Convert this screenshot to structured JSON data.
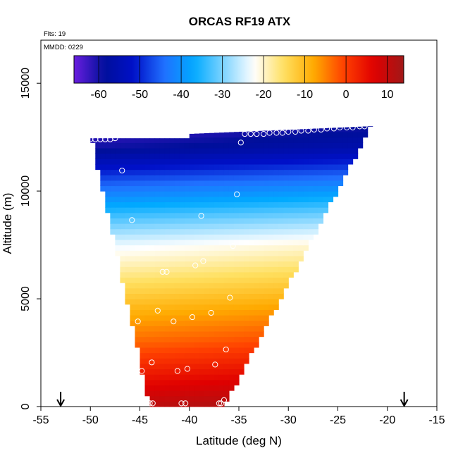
{
  "chart_data": {
    "type": "heatmap",
    "title": "ORCAS RF19 ATX",
    "annotations": {
      "flights": "Flts: 19",
      "date": "MMDD: 0229"
    },
    "xlabel": "Latitude (deg N)",
    "ylabel": "Altitude (m)",
    "xlim": [
      -55,
      -15
    ],
    "ylim": [
      0,
      17000
    ],
    "x_ticks": [
      -55,
      -50,
      -45,
      -40,
      -35,
      -30,
      -25,
      -20,
      -15
    ],
    "x_tick_labels": [
      "-55",
      "-50",
      "-45",
      "-40",
      "-35",
      "-30",
      "-25",
      "-20",
      "-15"
    ],
    "y_ticks": [
      0,
      5000,
      10000,
      15000
    ],
    "y_tick_labels": [
      "0",
      "5000",
      "10000",
      "15000"
    ],
    "colorbar": {
      "range": [
        -66,
        14
      ],
      "ticks": [
        -60,
        -50,
        -40,
        -30,
        -20,
        -10,
        0,
        10
      ],
      "tick_labels": [
        "-60",
        "-50",
        "-40",
        "-30",
        "-20",
        "-10",
        "0",
        "10"
      ],
      "colors": [
        "#6a1ee0",
        "#000f9a",
        "#0010c8",
        "#2070ff",
        "#00aaff",
        "#7fd4ff",
        "#ffffff",
        "#ffe060",
        "#ffaa00",
        "#ff4000",
        "#e00000",
        "#a01818"
      ]
    },
    "field": {
      "description_bounds": {
        "bottom_lat_range": [
          -44,
          -36.5
        ],
        "top_lat_range": [
          -50,
          -22
        ]
      },
      "top_altitude_profile": [
        {
          "lat": -50,
          "alt": 12400
        },
        {
          "lat": -40,
          "alt": 12600
        },
        {
          "lat": -40,
          "alt": 12900
        },
        {
          "lat": -22,
          "alt": 13000
        }
      ],
      "temperature_by_altitude": [
        {
          "alt": 0,
          "temp": 12
        },
        {
          "alt": 1500,
          "temp": 5
        },
        {
          "alt": 3000,
          "temp": -2
        },
        {
          "alt": 4500,
          "temp": -8
        },
        {
          "alt": 6000,
          "temp": -15
        },
        {
          "alt": 7500,
          "temp": -22
        },
        {
          "alt": 9000,
          "temp": -33
        },
        {
          "alt": 10500,
          "temp": -45
        },
        {
          "alt": 12000,
          "temp": -58
        },
        {
          "alt": 13000,
          "temp": -62
        }
      ]
    },
    "points": [
      {
        "lat": -50,
        "alt": 12400
      },
      {
        "lat": -49.5,
        "alt": 12400
      },
      {
        "lat": -49,
        "alt": 12400
      },
      {
        "lat": -48.5,
        "alt": 12400
      },
      {
        "lat": -48,
        "alt": 12400
      },
      {
        "lat": -47.5,
        "alt": 12450
      },
      {
        "lat": -46.8,
        "alt": 10950
      },
      {
        "lat": -45.8,
        "alt": 8650
      },
      {
        "lat": -45.2,
        "alt": 3950
      },
      {
        "lat": -44.8,
        "alt": 1650
      },
      {
        "lat": -44,
        "alt": 150
      },
      {
        "lat": -43.7,
        "alt": 150
      },
      {
        "lat": -43.8,
        "alt": 2050
      },
      {
        "lat": -43.2,
        "alt": 4450
      },
      {
        "lat": -42.7,
        "alt": 6250
      },
      {
        "lat": -42.3,
        "alt": 6250
      },
      {
        "lat": -41.6,
        "alt": 3950
      },
      {
        "lat": -41.2,
        "alt": 1650
      },
      {
        "lat": -40.8,
        "alt": 150
      },
      {
        "lat": -40.4,
        "alt": 150
      },
      {
        "lat": -40.2,
        "alt": 1750
      },
      {
        "lat": -39.7,
        "alt": 4150
      },
      {
        "lat": -39.4,
        "alt": 6550
      },
      {
        "lat": -38.8,
        "alt": 8850
      },
      {
        "lat": -38.6,
        "alt": 6750
      },
      {
        "lat": -37.8,
        "alt": 4350
      },
      {
        "lat": -37.4,
        "alt": 1950
      },
      {
        "lat": -37,
        "alt": 150
      },
      {
        "lat": -36.8,
        "alt": 150
      },
      {
        "lat": -36.5,
        "alt": 300
      },
      {
        "lat": -36.3,
        "alt": 2650
      },
      {
        "lat": -35.9,
        "alt": 5050
      },
      {
        "lat": -35.6,
        "alt": 7450
      },
      {
        "lat": -35.2,
        "alt": 9850
      },
      {
        "lat": -34.8,
        "alt": 12250
      },
      {
        "lat": -34.4,
        "alt": 12650
      },
      {
        "lat": -33.8,
        "alt": 12650
      },
      {
        "lat": -33.2,
        "alt": 12650
      },
      {
        "lat": -32.5,
        "alt": 12650
      },
      {
        "lat": -31.9,
        "alt": 12700
      },
      {
        "lat": -31.2,
        "alt": 12700
      },
      {
        "lat": -30.6,
        "alt": 12700
      },
      {
        "lat": -30,
        "alt": 12750
      },
      {
        "lat": -29.3,
        "alt": 12750
      },
      {
        "lat": -28.7,
        "alt": 12800
      },
      {
        "lat": -28,
        "alt": 12800
      },
      {
        "lat": -27.4,
        "alt": 12850
      },
      {
        "lat": -26.7,
        "alt": 12850
      },
      {
        "lat": -26.1,
        "alt": 12900
      },
      {
        "lat": -25.4,
        "alt": 12900
      },
      {
        "lat": -24.8,
        "alt": 12950
      },
      {
        "lat": -24.1,
        "alt": 12950
      },
      {
        "lat": -23.5,
        "alt": 12950
      },
      {
        "lat": -22.8,
        "alt": 13000
      },
      {
        "lat": -22.3,
        "alt": 13000
      }
    ],
    "markers": [
      {
        "lat": -53,
        "label": "↓"
      },
      {
        "lat": -18.3,
        "label": "↓"
      }
    ]
  }
}
